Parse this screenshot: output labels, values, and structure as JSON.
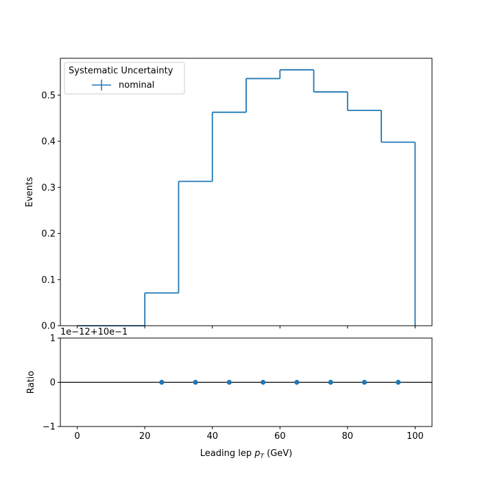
{
  "chart_data": [
    {
      "type": "histogram",
      "role": "main",
      "ylabel": "Events",
      "xlim": [
        -5,
        105
      ],
      "ylim": [
        0,
        0.58
      ],
      "yticks": [
        "0.0",
        "0.1",
        "0.2",
        "0.3",
        "0.4",
        "0.5"
      ],
      "bin_edges": [
        0,
        10,
        20,
        30,
        40,
        50,
        60,
        70,
        80,
        90,
        100
      ],
      "series": [
        {
          "name": "nominal",
          "color": "#1f77b4",
          "values": [
            0.0,
            0.0,
            0.071,
            0.313,
            0.463,
            0.536,
            0.555,
            0.507,
            0.467,
            0.398
          ]
        }
      ],
      "legend": {
        "title": "Systematic Uncertainty",
        "position": "upper left"
      },
      "x_ticklabels_shown": false
    },
    {
      "type": "scatter",
      "role": "ratio",
      "ylabel": "Ratio",
      "xlabel_main": "Leading lep ",
      "xlabel_sym": "p",
      "xlabel_sub": "T",
      "xlabel_unit": " (GeV)",
      "offset_text": "1e−12+10e−1",
      "xlim": [
        -5,
        105
      ],
      "ylim": [
        -1,
        1
      ],
      "yticks": [
        {
          "value": 1,
          "label": "1"
        },
        {
          "value": 0,
          "label": "0"
        },
        {
          "value": -1,
          "label": "−1"
        }
      ],
      "xticks": [
        0,
        20,
        40,
        60,
        80,
        100
      ],
      "reference_line": 0,
      "series": [
        {
          "name": "nominal",
          "color": "#1f77b4",
          "x": [
            25,
            35,
            45,
            55,
            65,
            75,
            85,
            95
          ],
          "y": [
            0,
            0,
            0,
            0,
            0,
            0,
            0,
            0
          ]
        }
      ]
    }
  ]
}
